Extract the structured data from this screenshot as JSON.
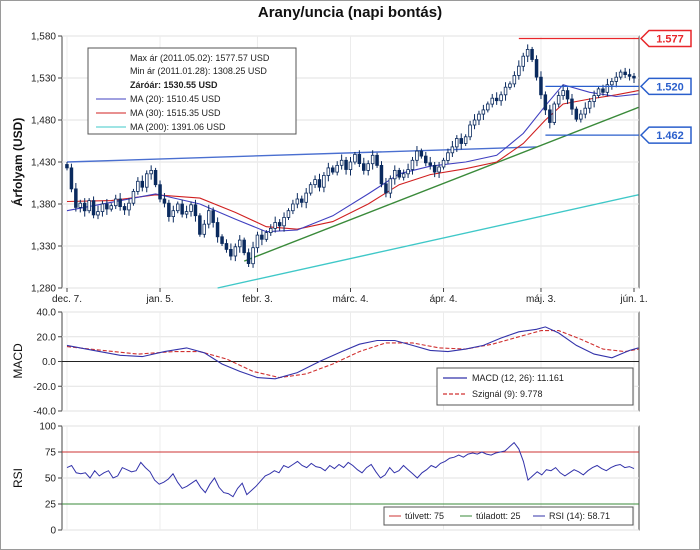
{
  "chart_data": {
    "title": "Arany/uncia (napi bontás)",
    "type": "candlestick",
    "x_tick_labels": [
      "dec. 7.",
      "jan. 5.",
      "febr. 3.",
      "márc. 4.",
      "ápr. 4.",
      "máj. 3.",
      "jún. 1."
    ],
    "price_panel": {
      "ylabel": "Árfolyam (USD)",
      "ylim": [
        1280,
        1580
      ],
      "y_ticks": [
        "1,580",
        "1,530",
        "1,480",
        "1,430",
        "1,380",
        "1,330",
        "1,280"
      ],
      "info_box": {
        "max": "Max ár (2011.05.02): 1577.57 USD",
        "min": "Min ár (2011.01.28): 1308.25 USD",
        "close": "Záróár: 1530.55 USD",
        "ma20": "MA (20): 1510.45 USD",
        "ma30": "MA (30): 1515.35 USD",
        "ma200": "MA (200): 1391.06 USD"
      },
      "badges": [
        {
          "label": "1.577",
          "value": 1577,
          "color": "#e8262a"
        },
        {
          "label": "1.520",
          "value": 1520,
          "color": "#2a5fcc"
        },
        {
          "label": "1.462",
          "value": 1462,
          "color": "#2a5fcc"
        }
      ],
      "close_series": [
        1423,
        1398,
        1376,
        1381,
        1372,
        1384,
        1367,
        1371,
        1380,
        1374,
        1378,
        1386,
        1377,
        1373,
        1381,
        1395,
        1407,
        1400,
        1416,
        1420,
        1403,
        1386,
        1381,
        1365,
        1372,
        1380,
        1368,
        1371,
        1379,
        1366,
        1344,
        1356,
        1372,
        1358,
        1341,
        1333,
        1326,
        1318,
        1329,
        1337,
        1322,
        1309,
        1328,
        1343,
        1338,
        1346,
        1351,
        1358,
        1354,
        1364,
        1372,
        1380,
        1386,
        1382,
        1393,
        1403,
        1409,
        1400,
        1414,
        1423,
        1418,
        1426,
        1432,
        1421,
        1430,
        1439,
        1428,
        1420,
        1428,
        1438,
        1426,
        1404,
        1393,
        1410,
        1420,
        1412,
        1416,
        1421,
        1432,
        1443,
        1437,
        1429,
        1426,
        1418,
        1424,
        1432,
        1441,
        1448,
        1458,
        1452,
        1460,
        1474,
        1480,
        1487,
        1492,
        1499,
        1506,
        1503,
        1510,
        1519,
        1523,
        1533,
        1544,
        1556,
        1564,
        1552,
        1531,
        1510,
        1492,
        1477,
        1499,
        1509,
        1515,
        1505,
        1493,
        1481,
        1487,
        1494,
        1502,
        1509,
        1517,
        1513,
        1522,
        1526,
        1531,
        1537,
        1534,
        1532,
        1530
      ]
    },
    "ma20": {
      "name": "MA (20)",
      "color": "#4040c0",
      "points": [
        [
          0,
          1372
        ],
        [
          10,
          1382
        ],
        [
          20,
          1392
        ],
        [
          30,
          1380
        ],
        [
          38,
          1362
        ],
        [
          45,
          1347
        ],
        [
          52,
          1349
        ],
        [
          60,
          1366
        ],
        [
          68,
          1392
        ],
        [
          75,
          1416
        ],
        [
          82,
          1425
        ],
        [
          90,
          1430
        ],
        [
          97,
          1438
        ],
        [
          103,
          1464
        ],
        [
          108,
          1497
        ],
        [
          112,
          1522
        ],
        [
          118,
          1513
        ],
        [
          124,
          1508
        ],
        [
          129,
          1511
        ]
      ]
    },
    "ma30": {
      "name": "MA (30)",
      "color": "#d02020",
      "points": [
        [
          0,
          1383
        ],
        [
          10,
          1384
        ],
        [
          20,
          1391
        ],
        [
          30,
          1387
        ],
        [
          38,
          1370
        ],
        [
          45,
          1353
        ],
        [
          52,
          1350
        ],
        [
          60,
          1359
        ],
        [
          68,
          1380
        ],
        [
          75,
          1403
        ],
        [
          82,
          1415
        ],
        [
          90,
          1422
        ],
        [
          97,
          1430
        ],
        [
          103,
          1452
        ],
        [
          108,
          1480
        ],
        [
          112,
          1499
        ],
        [
          118,
          1505
        ],
        [
          124,
          1510
        ],
        [
          129,
          1515
        ]
      ]
    },
    "ma200": {
      "name": "MA (200)",
      "color": "#3fc8c8",
      "points": [
        [
          34,
          1280
        ],
        [
          129,
          1391
        ]
      ]
    },
    "trendlines": [
      {
        "name": "upper-trendline",
        "color": "#4a6fd0",
        "points": [
          [
            0,
            1430
          ],
          [
            106,
            1448
          ]
        ]
      },
      {
        "name": "support-trendline",
        "color": "#3a8a3a",
        "points": [
          [
            40,
            1312
          ],
          [
            129,
            1495
          ]
        ]
      }
    ],
    "macd_panel": {
      "ylabel": "MACD",
      "ylim": [
        -40,
        40
      ],
      "y_ticks": [
        "40.0",
        "20.0",
        "0.0",
        "-20.0",
        "-40.0"
      ],
      "legend_macd": "MACD (12, 26): 11.161",
      "legend_signal": "Szignál (9): 9.778",
      "macd": [
        [
          0,
          13
        ],
        [
          6,
          9
        ],
        [
          12,
          5
        ],
        [
          17,
          4
        ],
        [
          22,
          8
        ],
        [
          27,
          11
        ],
        [
          31,
          7
        ],
        [
          35,
          -2
        ],
        [
          39,
          -8
        ],
        [
          43,
          -13
        ],
        [
          47,
          -14
        ],
        [
          52,
          -9
        ],
        [
          57,
          0
        ],
        [
          62,
          8
        ],
        [
          66,
          14
        ],
        [
          70,
          17
        ],
        [
          74,
          17
        ],
        [
          78,
          13
        ],
        [
          82,
          9
        ],
        [
          86,
          8
        ],
        [
          90,
          10
        ],
        [
          94,
          13
        ],
        [
          98,
          19
        ],
        [
          102,
          24
        ],
        [
          106,
          26
        ],
        [
          108,
          28
        ],
        [
          111,
          23
        ],
        [
          115,
          13
        ],
        [
          119,
          6
        ],
        [
          123,
          3
        ],
        [
          127,
          9
        ],
        [
          129,
          11
        ]
      ],
      "signal": [
        [
          0,
          12
        ],
        [
          8,
          9
        ],
        [
          16,
          6
        ],
        [
          24,
          8
        ],
        [
          30,
          8
        ],
        [
          36,
          2
        ],
        [
          42,
          -8
        ],
        [
          48,
          -13
        ],
        [
          54,
          -10
        ],
        [
          60,
          -2
        ],
        [
          66,
          8
        ],
        [
          72,
          15
        ],
        [
          78,
          15
        ],
        [
          84,
          11
        ],
        [
          90,
          10
        ],
        [
          96,
          14
        ],
        [
          102,
          20
        ],
        [
          107,
          25
        ],
        [
          111,
          25
        ],
        [
          116,
          18
        ],
        [
          121,
          10
        ],
        [
          126,
          8
        ],
        [
          129,
          10
        ]
      ]
    },
    "rsi_panel": {
      "ylabel": "RSI",
      "ylim": [
        0,
        100
      ],
      "y_ticks": [
        "100",
        "75",
        "50",
        "25",
        "0"
      ],
      "overbought": 75,
      "oversold": 25,
      "legend_overbought": "túlvett: 75",
      "legend_oversold": "túladott: 25",
      "legend_rsi": "RSI (14): 58.71",
      "rsi": [
        60,
        62,
        55,
        54,
        55,
        50,
        57,
        52,
        55,
        57,
        50,
        52,
        60,
        58,
        56,
        57,
        65,
        60,
        56,
        48,
        44,
        46,
        49,
        54,
        46,
        40,
        42,
        45,
        48,
        41,
        36,
        44,
        50,
        41,
        36,
        35,
        32,
        40,
        45,
        34,
        38,
        42,
        47,
        52,
        54,
        57,
        55,
        62,
        60,
        63,
        66,
        62,
        60,
        64,
        61,
        60,
        57,
        62,
        59,
        63,
        60,
        65,
        62,
        58,
        55,
        60,
        63,
        56,
        50,
        53,
        60,
        55,
        57,
        62,
        58,
        54,
        50,
        55,
        58,
        62,
        60,
        64,
        66,
        69,
        70,
        72,
        70,
        73,
        74,
        73,
        75,
        73,
        72,
        74,
        75,
        76,
        80,
        84,
        78,
        66,
        48,
        52,
        56,
        53,
        58,
        57,
        60,
        55,
        52,
        55,
        58,
        56,
        53,
        57,
        60,
        62,
        59,
        57,
        60,
        62,
        63,
        60,
        61,
        59
      ]
    }
  }
}
